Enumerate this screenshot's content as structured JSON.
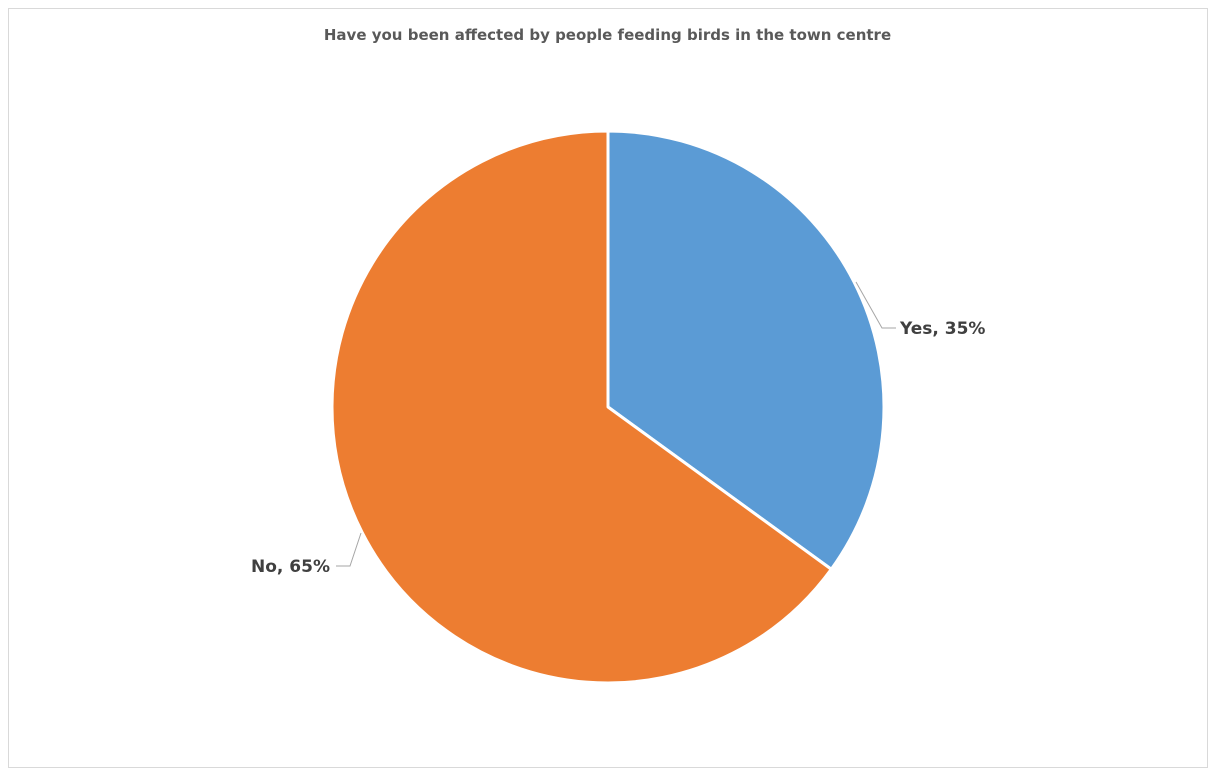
{
  "chart_data": {
    "type": "pie",
    "title": "Have you been affected by people feeding birds in the town centre",
    "categories": [
      "Yes",
      "No"
    ],
    "values": [
      35,
      65
    ],
    "unit": "%",
    "colors": [
      "#5B9BD5",
      "#ED7D31"
    ],
    "labels": [
      "Yes, 35%",
      "No, 65%"
    ],
    "start_angle_deg": 0,
    "direction": "clockwise",
    "legend": "none",
    "slice_border_color": "#FFFFFF",
    "leader_line_color": "#A6A6A6"
  }
}
